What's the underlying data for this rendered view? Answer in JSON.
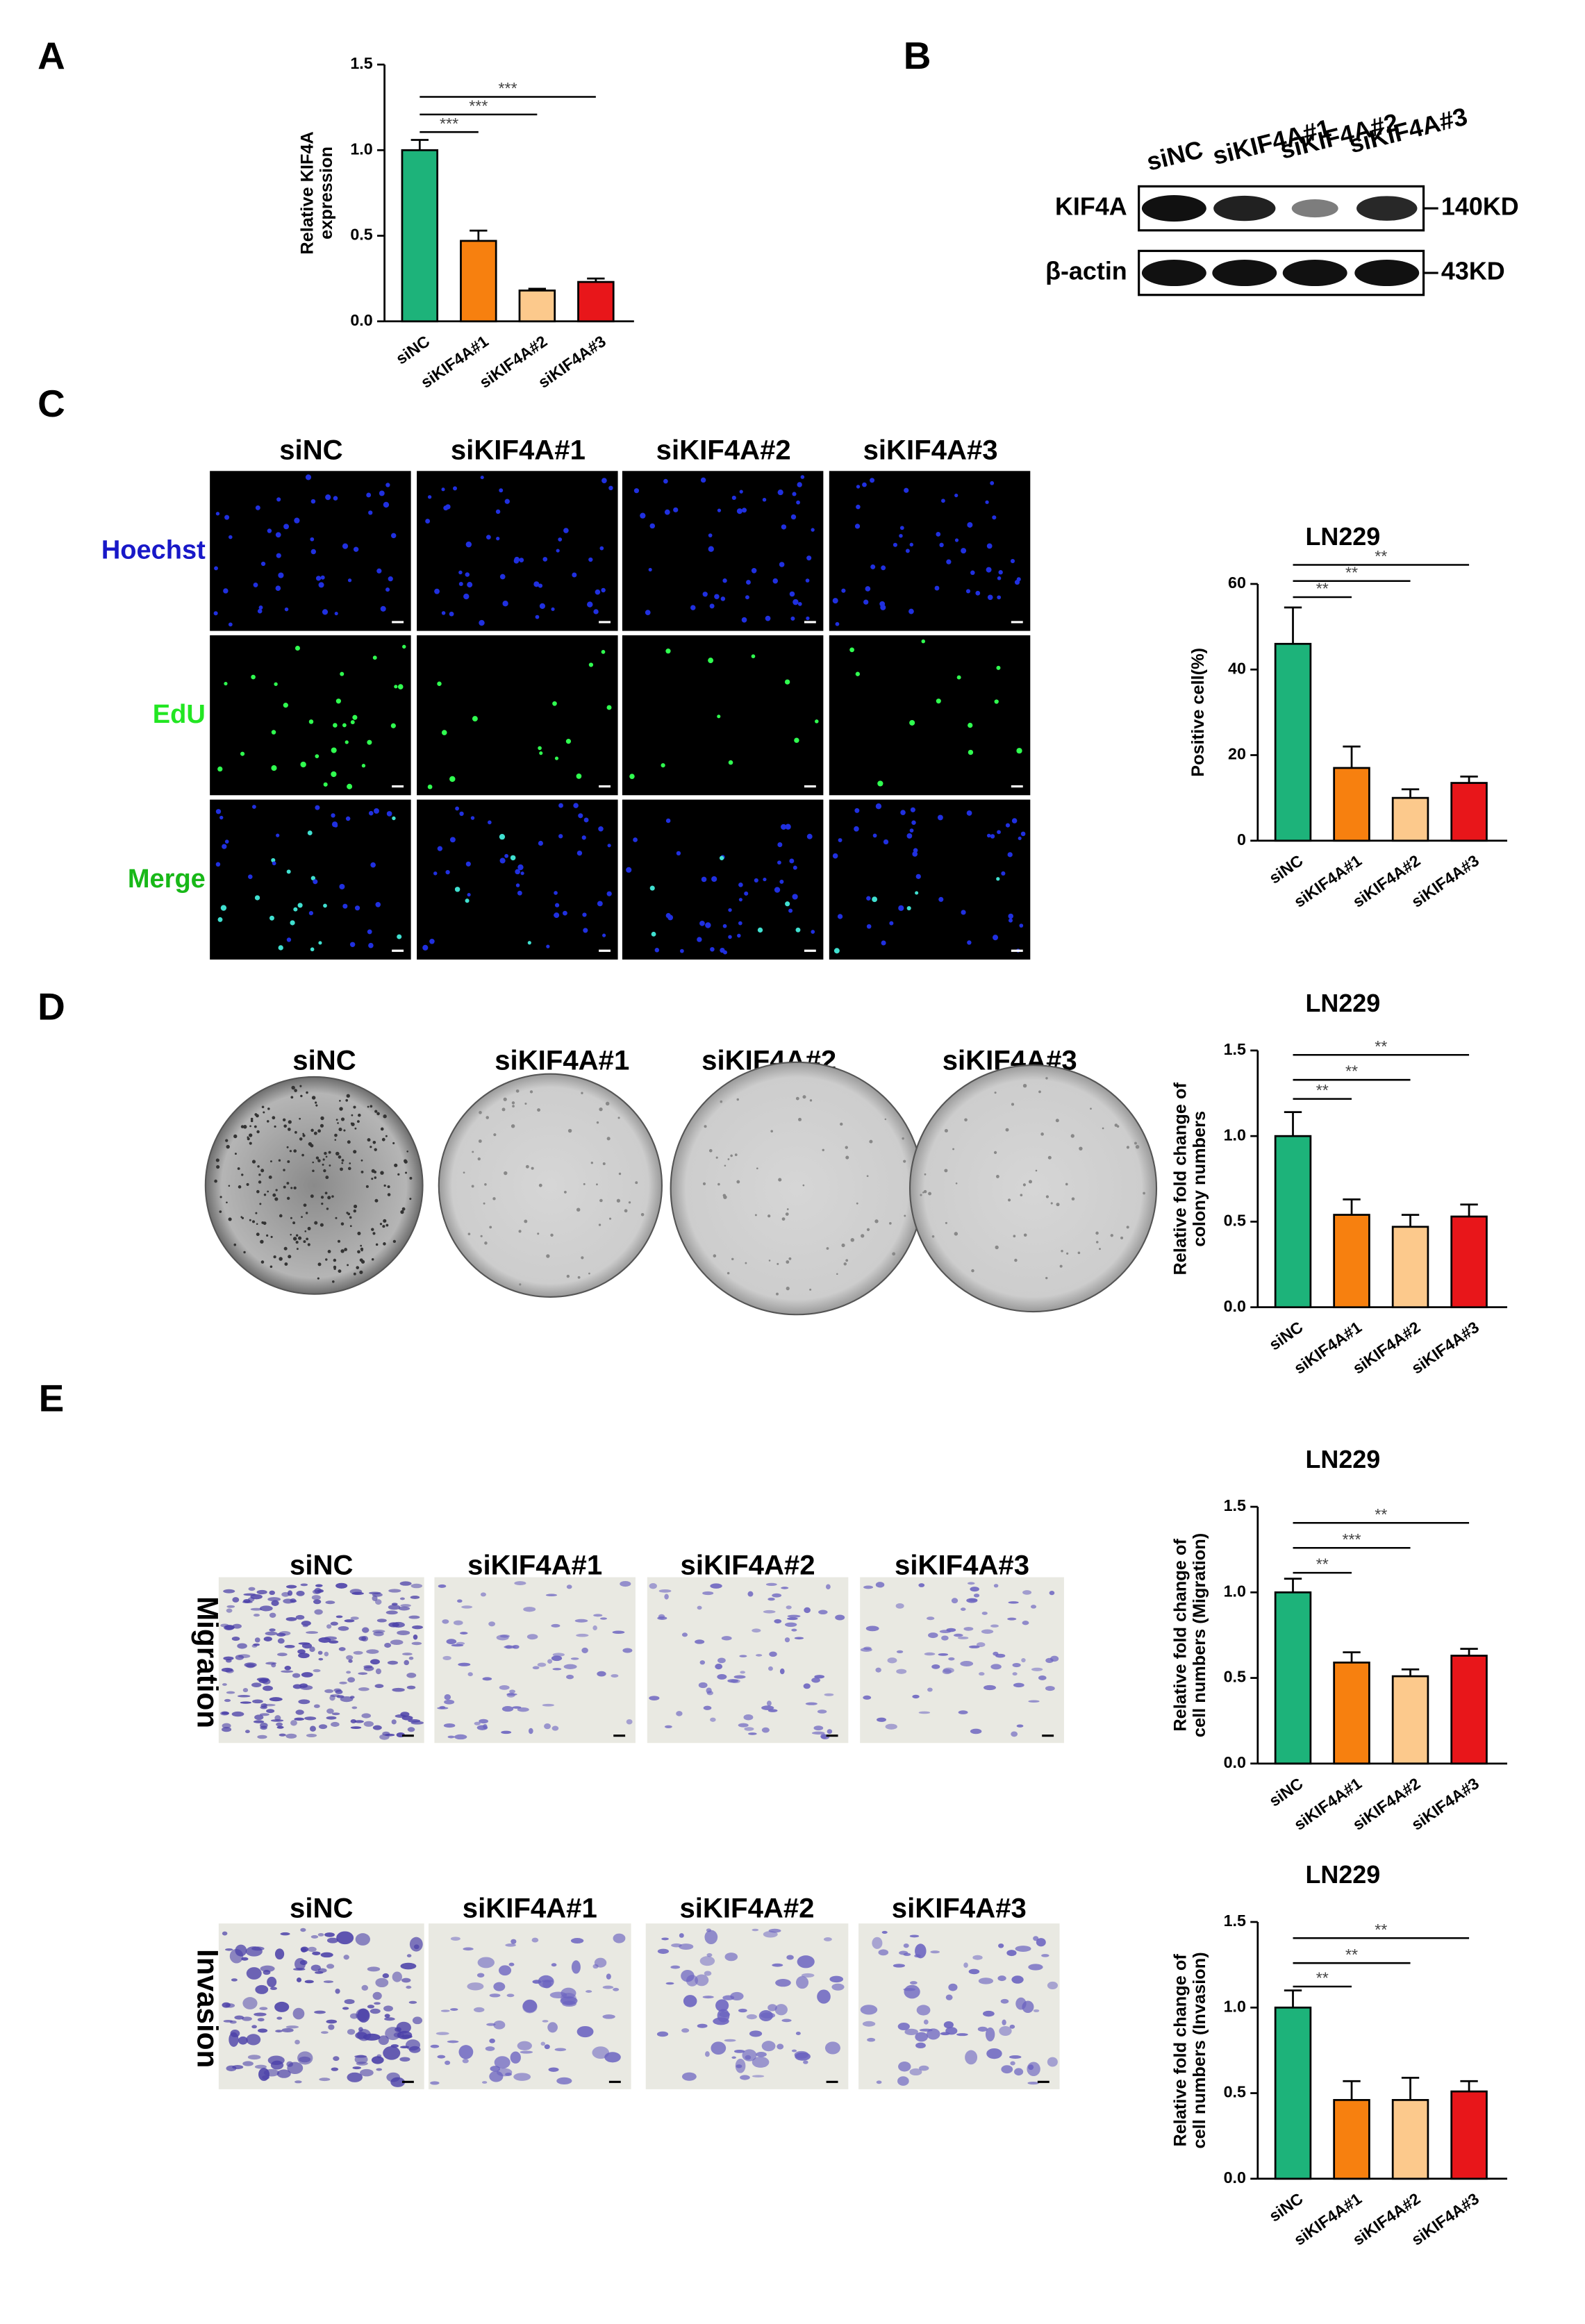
{
  "panel_labels": [
    "A",
    "B",
    "C",
    "D",
    "E"
  ],
  "blot": {
    "lanes": [
      "siNC",
      "siKIF4A#1",
      "siKIF4A#2",
      "siKIF4A#3"
    ],
    "rows": [
      {
        "protein": "KIF4A",
        "size": "140KD"
      },
      {
        "protein": "β-actin",
        "size": "43KD"
      }
    ]
  },
  "edu": {
    "columns": [
      "siNC",
      "siKIF4A#1",
      "siKIF4A#2",
      "siKIF4A#3"
    ],
    "rows": [
      "Hoechst",
      "EdU",
      "Merge"
    ]
  },
  "colony": {
    "columns": [
      "siNC",
      "siKIF4A#1",
      "siKIF4A#2",
      "siKIF4A#3"
    ]
  },
  "transwell": {
    "migration": {
      "label": "Migration",
      "columns": [
        "siNC",
        "siKIF4A#1",
        "siKIF4A#2",
        "siKIF4A#3"
      ]
    },
    "invasion": {
      "label": "Invasion",
      "columns": [
        "siNC",
        "siKIF4A#1",
        "siKIF4A#2",
        "siKIF4A#3"
      ]
    }
  },
  "chart_data": [
    {
      "type": "bar",
      "ylabel": [
        "Relative KIF4A",
        "expression"
      ],
      "categories": [
        "siNC",
        "siKIF4A#1",
        "siKIF4A#2",
        "siKIF4A#3"
      ],
      "values": [
        1.0,
        0.47,
        0.18,
        0.23
      ],
      "errors": [
        0.06,
        0.06,
        0.01,
        0.02
      ],
      "colors": [
        "#1db37a",
        "#f7800f",
        "#fcc98c",
        "#e8161a"
      ],
      "ylim": [
        0,
        1.5
      ],
      "yticks": [
        {
          "value": 0,
          "label": "0.0"
        },
        0.5,
        {
          "value": 1,
          "label": "1.0"
        },
        1.5
      ],
      "significance": [
        "***",
        "***",
        "***"
      ]
    },
    {
      "type": "bar",
      "title": "LN229",
      "ylabel": [
        "Positive cell(%)"
      ],
      "categories": [
        "siNC",
        "siKIF4A#1",
        "siKIF4A#2",
        "siKIF4A#3"
      ],
      "values": [
        46,
        17,
        10,
        13.5
      ],
      "errors": [
        8.5,
        5,
        2,
        1.5
      ],
      "colors": [
        "#1db37a",
        "#f7800f",
        "#fcc98c",
        "#e8161a"
      ],
      "ylim": [
        0,
        60
      ],
      "yticks": [
        0,
        20,
        40,
        60
      ],
      "significance": [
        "**",
        "**",
        "**"
      ]
    },
    {
      "type": "bar",
      "title": "LN229",
      "ylabel": [
        "Relative fold change of",
        "colony numbers"
      ],
      "categories": [
        "siNC",
        "siKIF4A#1",
        "siKIF4A#2",
        "siKIF4A#3"
      ],
      "values": [
        1.0,
        0.54,
        0.47,
        0.53
      ],
      "errors": [
        0.14,
        0.09,
        0.07,
        0.07
      ],
      "colors": [
        "#1db37a",
        "#f7800f",
        "#fcc98c",
        "#e8161a"
      ],
      "ylim": [
        0,
        1.5
      ],
      "yticks": [
        {
          "value": 0,
          "label": "0.0"
        },
        0.5,
        {
          "value": 1,
          "label": "1.0"
        },
        1.5
      ],
      "significance": [
        "**",
        "**",
        "**"
      ]
    },
    {
      "type": "bar",
      "title": "LN229",
      "ylabel": [
        "Relative fold change of",
        "cell numbers (Migration)"
      ],
      "categories": [
        "siNC",
        "siKIF4A#1",
        "siKIF4A#2",
        "siKIF4A#3"
      ],
      "values": [
        1.0,
        0.59,
        0.51,
        0.63
      ],
      "errors": [
        0.08,
        0.06,
        0.04,
        0.04
      ],
      "colors": [
        "#1db37a",
        "#f7800f",
        "#fcc98c",
        "#e8161a"
      ],
      "ylim": [
        0,
        1.5
      ],
      "yticks": [
        {
          "value": 0,
          "label": "0.0"
        },
        0.5,
        {
          "value": 1,
          "label": "1.0"
        },
        1.5
      ],
      "significance": [
        "**",
        "***",
        "**"
      ]
    },
    {
      "type": "bar",
      "title": "LN229",
      "ylabel": [
        "Relative fold change of",
        "cell numbers (Invasion)"
      ],
      "categories": [
        "siNC",
        "siKIF4A#1",
        "siKIF4A#2",
        "siKIF4A#3"
      ],
      "values": [
        1.0,
        0.46,
        0.46,
        0.51
      ],
      "errors": [
        0.1,
        0.11,
        0.13,
        0.06
      ],
      "colors": [
        "#1db37a",
        "#f7800f",
        "#fcc98c",
        "#e8161a"
      ],
      "ylim": [
        0,
        1.5
      ],
      "yticks": [
        {
          "value": 0,
          "label": "0.0"
        },
        0.5,
        {
          "value": 1,
          "label": "1.0"
        },
        1.5
      ],
      "significance": [
        "**",
        "**",
        "**"
      ]
    }
  ]
}
